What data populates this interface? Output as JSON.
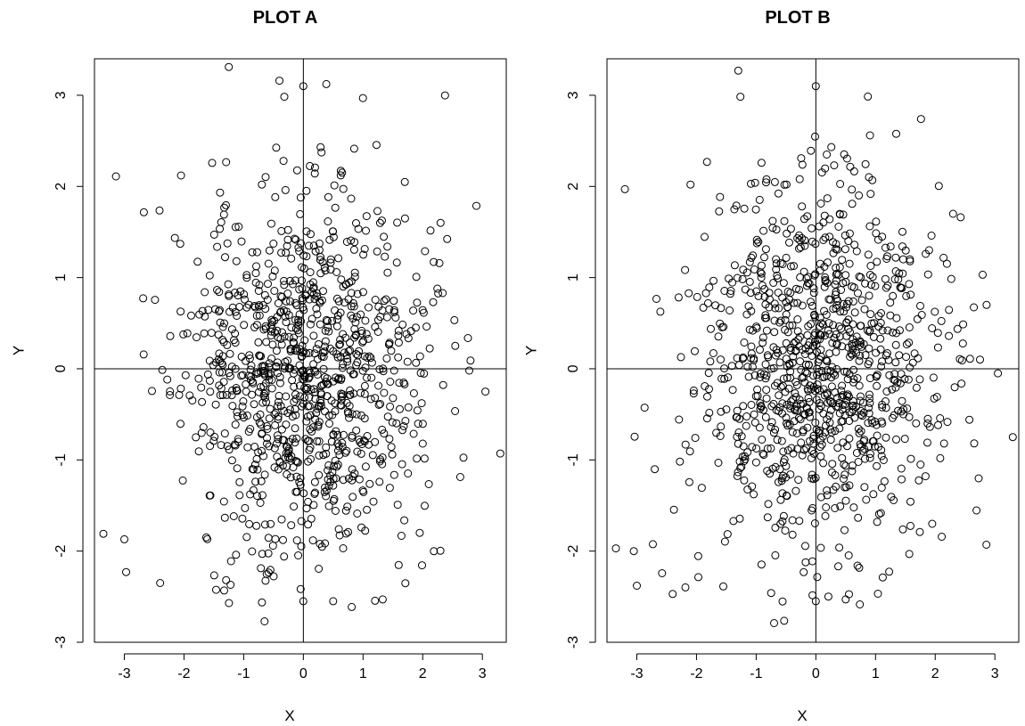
{
  "chart_data": [
    {
      "type": "scatter",
      "title": "PLOT A",
      "xlabel": "X",
      "ylabel": "Y",
      "xlim": [
        -3.5,
        3.4
      ],
      "ylim": [
        -3.0,
        3.4
      ],
      "xticks": [
        -3,
        -2,
        -1,
        0,
        1,
        2,
        3
      ],
      "yticks": [
        -3,
        -2,
        -1,
        0,
        1,
        2,
        3
      ],
      "grid": false,
      "reference_lines": {
        "x": 0,
        "y": 0
      },
      "marker": "open-circle",
      "n_points": 1000,
      "seed": 11,
      "outliers": [
        [
          -3.14,
          2.11
        ],
        [
          -2.05,
          2.12
        ],
        [
          -1.25,
          3.31
        ],
        [
          0.0,
          3.1
        ],
        [
          2.3,
          1.6
        ],
        [
          3.05,
          -0.25
        ],
        [
          3.3,
          -0.93
        ],
        [
          -3.35,
          -1.81
        ],
        [
          -3.0,
          -1.87
        ],
        [
          -2.97,
          -2.23
        ],
        [
          -2.4,
          -2.35
        ],
        [
          -0.65,
          -2.77
        ],
        [
          0.0,
          -2.55
        ],
        [
          0.5,
          -2.55
        ],
        [
          2.78,
          -0.02
        ],
        [
          1.95,
          -1.8
        ]
      ]
    },
    {
      "type": "scatter",
      "title": "PLOT B",
      "xlabel": "X",
      "ylabel": "Y",
      "xlim": [
        -3.5,
        3.4
      ],
      "ylim": [
        -3.0,
        3.4
      ],
      "xticks": [
        -3,
        -2,
        -1,
        0,
        1,
        2,
        3
      ],
      "yticks": [
        -3,
        -2,
        -1,
        0,
        1,
        2,
        3
      ],
      "grid": false,
      "reference_lines": {
        "x": 0,
        "y": 0
      },
      "marker": "open-circle",
      "n_points": 1000,
      "seed": 23,
      "outliers": [
        [
          -3.2,
          1.97
        ],
        [
          -2.1,
          2.02
        ],
        [
          -1.3,
          3.27
        ],
        [
          0.0,
          3.1
        ],
        [
          2.3,
          1.7
        ],
        [
          3.05,
          -0.05
        ],
        [
          3.3,
          -0.75
        ],
        [
          -3.35,
          -1.97
        ],
        [
          -3.05,
          -2.0
        ],
        [
          -3.0,
          -2.38
        ],
        [
          -2.4,
          -2.47
        ],
        [
          -0.7,
          -2.79
        ],
        [
          0.0,
          -2.55
        ],
        [
          0.5,
          -2.53
        ],
        [
          2.75,
          0.1
        ],
        [
          1.95,
          -1.7
        ]
      ]
    }
  ]
}
